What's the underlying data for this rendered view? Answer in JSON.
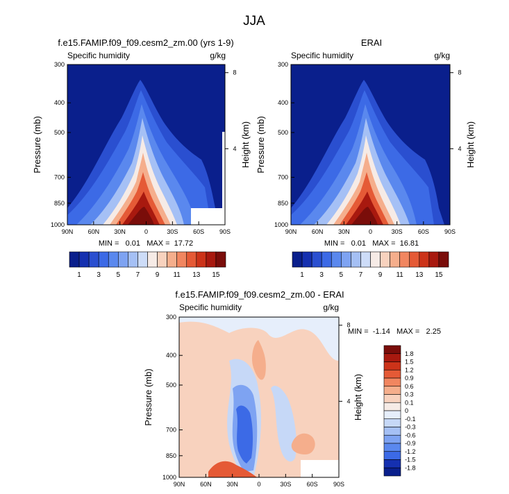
{
  "figure": {
    "title": "JJA"
  },
  "chart_data": [
    {
      "type": "heatmap",
      "title": "f.e15.FAMIP.f09_f09.cesm2_zm.00 (yrs 1-9)",
      "variable_label": "Specific humidity",
      "units_label": "g/kg",
      "xlabel": "",
      "ylabel": "Pressure (mb)",
      "ylabel_right": "Height (km)",
      "x_ticks": [
        "90N",
        "60N",
        "30N",
        "0",
        "30S",
        "60S",
        "90S"
      ],
      "y_ticks": [
        "300",
        "400",
        "500",
        "700",
        "850",
        "1000"
      ],
      "y_right_ticks": [
        "8",
        "4"
      ],
      "ylim": [
        1000,
        300
      ],
      "stats_text": "MIN =   0.01   MAX =  17.72",
      "min": 0.01,
      "max": 17.72,
      "levels": [
        1,
        2,
        3,
        4,
        5,
        6,
        7,
        8,
        9,
        10,
        11,
        12,
        13,
        14,
        15
      ],
      "colorbar_labels": [
        "1",
        "3",
        "5",
        "7",
        "9",
        "11",
        "13",
        "15"
      ],
      "colors": [
        "#0a1f8c",
        "#1530b0",
        "#2a4fd0",
        "#3c6ae6",
        "#5a88ee",
        "#7ea3f2",
        "#a5c0f5",
        "#cddcf8",
        "#f6ebe6",
        "#f8d2be",
        "#f5ae8c",
        "#f18660",
        "#e55a36",
        "#cc3319",
        "#a8190f",
        "#7a0d0a"
      ],
      "missing_note": "white masked regions near 60S-90S"
    },
    {
      "type": "heatmap",
      "title": "ERAI",
      "variable_label": "Specific humidity",
      "units_label": "g/kg",
      "xlabel": "",
      "ylabel": "Pressure (mb)",
      "ylabel_right": "Height (km)",
      "x_ticks": [
        "90N",
        "60N",
        "30N",
        "0",
        "30S",
        "60S",
        "90S"
      ],
      "y_ticks": [
        "300",
        "400",
        "500",
        "700",
        "850",
        "1000"
      ],
      "y_right_ticks": [
        "8",
        "4"
      ],
      "ylim": [
        1000,
        300
      ],
      "stats_text": "MIN =   0.01   MAX =  16.81",
      "min": 0.01,
      "max": 16.81,
      "levels": [
        1,
        2,
        3,
        4,
        5,
        6,
        7,
        8,
        9,
        10,
        11,
        12,
        13,
        14,
        15
      ],
      "colorbar_labels": [
        "1",
        "3",
        "5",
        "7",
        "9",
        "11",
        "13",
        "15"
      ],
      "colors": [
        "#0a1f8c",
        "#1530b0",
        "#2a4fd0",
        "#3c6ae6",
        "#5a88ee",
        "#7ea3f2",
        "#a5c0f5",
        "#cddcf8",
        "#f6ebe6",
        "#f8d2be",
        "#f5ae8c",
        "#f18660",
        "#e55a36",
        "#cc3319",
        "#a8190f",
        "#7a0d0a"
      ]
    },
    {
      "type": "heatmap",
      "title": "f.e15.FAMIP.f09_f09.cesm2_zm.00 - ERAI",
      "variable_label": "Specific humidity",
      "units_label": "g/kg",
      "xlabel": "",
      "ylabel": "Pressure (mb)",
      "ylabel_right": "Height (km)",
      "x_ticks": [
        "90N",
        "60N",
        "30N",
        "0",
        "30S",
        "60S",
        "90S"
      ],
      "y_ticks": [
        "300",
        "400",
        "500",
        "700",
        "850",
        "1000"
      ],
      "y_right_ticks": [
        "8",
        "4"
      ],
      "ylim": [
        1000,
        300
      ],
      "stats_text": "MIN =  -1.14   MAX =   2.25",
      "min": -1.14,
      "max": 2.25,
      "colorbar_labels": [
        "1.8",
        "1.5",
        "1.2",
        "0.9",
        "0.6",
        "0.3",
        "0.1",
        "0",
        "-0.1",
        "-0.3",
        "-0.6",
        "-0.9",
        "-1.2",
        "-1.5",
        "-1.8"
      ],
      "colors": [
        "#7a0d0a",
        "#a8190f",
        "#cc3319",
        "#e55a36",
        "#f18660",
        "#f5ae8c",
        "#f8d2be",
        "#f6ebe6",
        "#e6eefb",
        "#c6d8f7",
        "#a5c0f5",
        "#7ea3f2",
        "#5a88ee",
        "#3c6ae6",
        "#1530b0",
        "#0a1f8c"
      ]
    }
  ]
}
